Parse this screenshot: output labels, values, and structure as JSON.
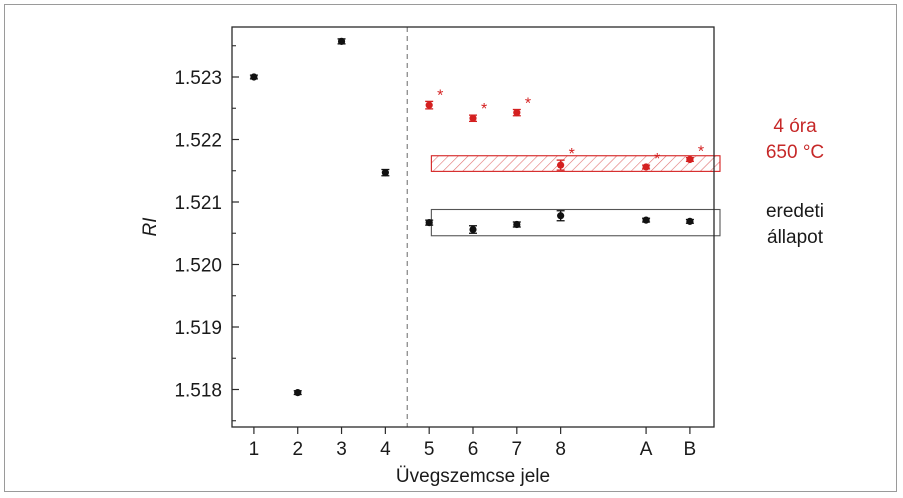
{
  "chart_data": {
    "type": "scatter",
    "title": "",
    "xlabel": "Üvegszemcse jele",
    "ylabel": "RI",
    "ylim": [
      1.5174,
      1.5238
    ],
    "yticks": [
      1.518,
      1.519,
      1.52,
      1.521,
      1.522,
      1.523
    ],
    "ytick_labels": [
      "1.518",
      "1.519",
      "1.520",
      "1.521",
      "1.522",
      "1.523"
    ],
    "categories": [
      "1",
      "2",
      "3",
      "4",
      "5",
      "6",
      "7",
      "8",
      "A",
      "B"
    ],
    "x_positions": [
      1,
      2,
      3,
      4,
      5,
      6,
      7,
      8,
      9.95,
      10.95
    ],
    "xlim": [
      0.5,
      11.5
    ],
    "separator_x": 4.5,
    "series": [
      {
        "color": "#111111",
        "categories": [
          "1",
          "2",
          "3",
          "4",
          "5",
          "6",
          "7",
          "8",
          "A",
          "B"
        ],
        "values": [
          1.523,
          1.51795,
          1.52357,
          1.52147,
          1.52067,
          1.52056,
          1.52064,
          1.52078,
          1.52071,
          1.52069
        ],
        "errors": [
          3e-05,
          3e-05,
          4e-05,
          5e-05,
          4e-05,
          6e-05,
          4e-05,
          8e-05,
          3e-05,
          3e-05
        ]
      },
      {
        "color": "#d42020",
        "categories": [
          "5",
          "6",
          "7",
          "8",
          "A",
          "B"
        ],
        "values": [
          1.52255,
          1.52234,
          1.52243,
          1.52159,
          1.52156,
          1.52168
        ],
        "errors": [
          6e-05,
          5e-05,
          5e-05,
          8e-05,
          3e-05,
          3e-05
        ],
        "marker_labels": [
          "*",
          "*",
          "*",
          "*",
          "*",
          "*"
        ]
      }
    ],
    "bands": [
      {
        "color": "#d42020",
        "style": "hatched",
        "y_low": 1.52149,
        "y_high": 1.52174
      },
      {
        "color": "#555555",
        "style": "outline",
        "y_low": 1.52046,
        "y_high": 1.52088
      }
    ],
    "annotations": [
      {
        "lines": [
          "4 óra",
          "650 °C"
        ],
        "color": "#c62828"
      },
      {
        "lines": [
          "eredeti",
          "állapot"
        ],
        "color": "#1a1a1a"
      }
    ]
  }
}
